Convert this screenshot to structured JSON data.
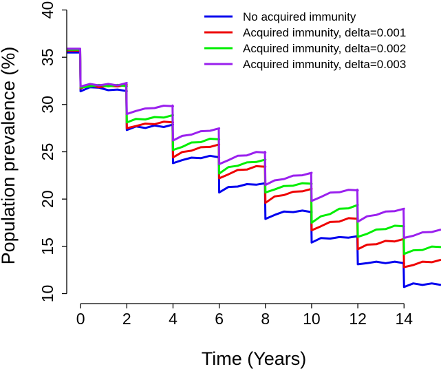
{
  "chart_data": {
    "type": "line",
    "title": "",
    "xlabel": "Time (Years)",
    "ylabel": "Population prevalence (%)",
    "xlim": [
      -0.6,
      15.6
    ],
    "ylim": [
      9.6,
      40.4
    ],
    "xticks": [
      0,
      2,
      4,
      6,
      8,
      10,
      12,
      14
    ],
    "yticks": [
      10,
      15,
      20,
      25,
      30,
      35,
      40
    ],
    "legend_position": "top-right",
    "series": [
      {
        "name": "No acquired immunity",
        "color": "#0000ee",
        "values": [
          35.5,
          31.4,
          31.9,
          31.7,
          31.6,
          31.5,
          31.5,
          27.3,
          27.6,
          27.6,
          27.7,
          27.7,
          27.8,
          23.8,
          24.2,
          24.3,
          24.4,
          24.5,
          24.5,
          20.7,
          21.2,
          21.4,
          21.5,
          21.6,
          21.6,
          17.9,
          18.4,
          18.6,
          18.7,
          18.7,
          18.7,
          15.4,
          15.8,
          15.9,
          15.9,
          16.0,
          16.0,
          13.1,
          13.3,
          13.3,
          13.3,
          13.3,
          13.3,
          10.7,
          11.0,
          11.0,
          11.0,
          11.0
        ]
      },
      {
        "name": "Acquired immunity, delta=0.001",
        "color": "#ee0000",
        "values": [
          35.7,
          31.7,
          32.0,
          31.9,
          31.9,
          32.0,
          32.0,
          27.5,
          27.8,
          27.9,
          28.0,
          28.1,
          28.2,
          24.4,
          24.9,
          25.2,
          25.4,
          25.6,
          25.7,
          22.2,
          22.7,
          23.0,
          23.2,
          23.4,
          23.5,
          19.6,
          20.2,
          20.5,
          20.7,
          20.9,
          21.0,
          16.7,
          17.2,
          17.5,
          17.7,
          17.9,
          18.0,
          14.7,
          15.1,
          15.3,
          15.5,
          15.6,
          15.7,
          12.8,
          13.1,
          13.3,
          13.4,
          13.5
        ]
      },
      {
        "name": "Acquired immunity, delta=0.002",
        "color": "#00ee00",
        "values": [
          35.8,
          31.8,
          32.0,
          32.0,
          32.0,
          32.0,
          32.0,
          28.1,
          28.4,
          28.5,
          28.6,
          28.7,
          28.8,
          25.2,
          25.6,
          25.9,
          26.1,
          26.3,
          26.4,
          22.7,
          23.3,
          23.6,
          23.8,
          24.0,
          24.1,
          20.7,
          21.1,
          21.3,
          21.5,
          21.6,
          21.7,
          17.5,
          18.1,
          18.5,
          18.9,
          19.1,
          19.3,
          16.0,
          16.4,
          16.7,
          16.9,
          17.1,
          17.2,
          14.2,
          14.5,
          14.7,
          14.9,
          15.0
        ]
      },
      {
        "name": "Acquired immunity, delta=0.003",
        "color": "#9a20ee",
        "values": [
          35.9,
          31.9,
          32.1,
          32.1,
          32.1,
          32.1,
          32.2,
          29.0,
          29.4,
          29.5,
          29.7,
          29.8,
          29.9,
          26.2,
          26.6,
          26.9,
          27.1,
          27.3,
          27.4,
          23.7,
          24.2,
          24.5,
          24.7,
          24.9,
          25.0,
          21.5,
          21.9,
          22.2,
          22.4,
          22.6,
          22.7,
          19.8,
          20.3,
          20.6,
          20.8,
          20.9,
          21.0,
          17.6,
          18.1,
          18.4,
          18.6,
          18.8,
          18.9,
          15.9,
          16.2,
          16.4,
          16.6,
          16.7
        ]
      }
    ]
  }
}
